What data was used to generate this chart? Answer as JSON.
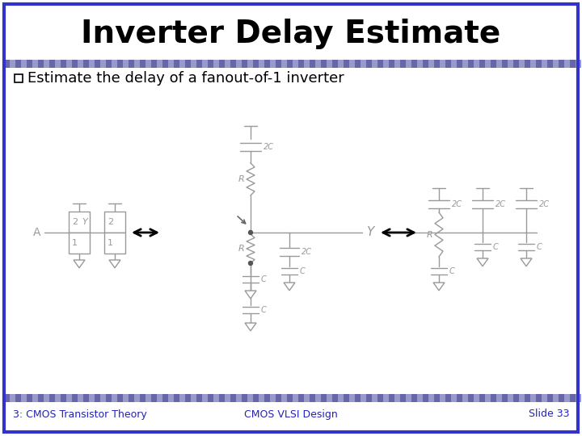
{
  "title": "Inverter Delay Estimate",
  "subtitle": "Estimate the delay of a fanout-of-1 inverter",
  "footer_left": "3: CMOS Transistor Theory",
  "footer_center": "CMOS VLSI Design",
  "footer_right": "Slide 33",
  "bg_color": "#ffffff",
  "border_color": "#3333cc",
  "title_color": "#000000",
  "subtitle_color": "#000000",
  "footer_color": "#2222bb",
  "circuit_color": "#999999",
  "arrow_color": "#000000",
  "title_fontsize": 28,
  "subtitle_fontsize": 13
}
